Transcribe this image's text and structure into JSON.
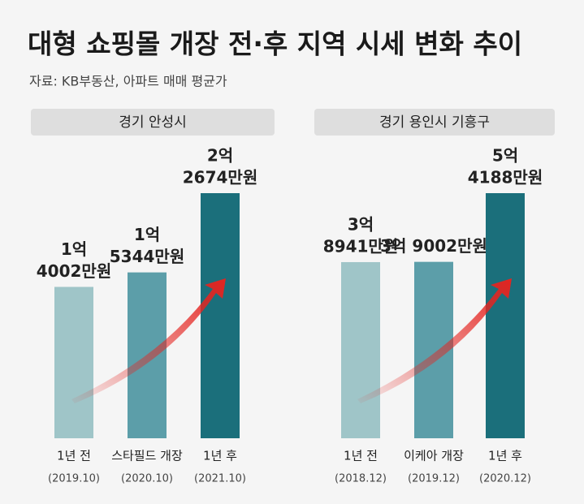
{
  "title": "대형 쇼핑몰 개장 전·후 지역 시세 변화 추이",
  "subtitle": "자료: KB부동산, 아파트 매매 평균가",
  "chart_data": [
    {
      "type": "bar",
      "title": "경기 안성시",
      "categories": [
        "1년 전",
        "스타필드 개장",
        "1년 후"
      ],
      "periods": [
        "(2019.10)",
        "(2020.10)",
        "(2021.10)"
      ],
      "values": [
        14002,
        15344,
        22674
      ],
      "value_labels": [
        [
          "1억",
          "4002만원"
        ],
        [
          "1억",
          "5344만원"
        ],
        [
          "2억",
          "2674만원"
        ]
      ],
      "colors": [
        "#9fc5c8",
        "#5c9ea9",
        "#1b6f7b"
      ]
    },
    {
      "type": "bar",
      "title": "경기 용인시 기흥구",
      "categories": [
        "1년 전",
        "이케아 개장",
        "1년 후"
      ],
      "periods": [
        "(2018.12)",
        "(2019.12)",
        "(2020.12)"
      ],
      "values": [
        38941,
        39002,
        54188
      ],
      "value_labels": [
        [
          "3억",
          "8941만원"
        ],
        [
          "3억 9002만원"
        ],
        [
          "5억",
          "4188만원"
        ]
      ],
      "colors": [
        "#9fc5c8",
        "#5c9ea9",
        "#1b6f7b"
      ]
    }
  ]
}
